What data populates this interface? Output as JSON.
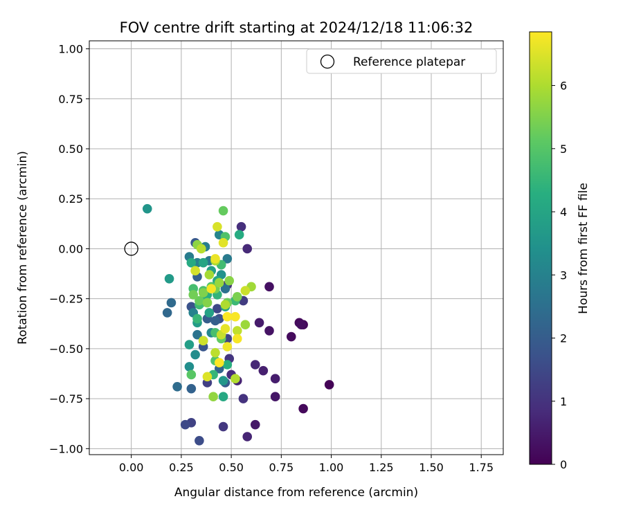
{
  "chart_data": {
    "type": "scatter",
    "title": "FOV centre drift starting at 2024/12/18 11:06:32",
    "xlabel": "Angular distance from reference (arcmin)",
    "ylabel": "Rotation from reference (arcmin)",
    "xlim": [
      -0.21,
      1.86
    ],
    "ylim": [
      -1.03,
      1.04
    ],
    "xticks": [
      0.0,
      0.25,
      0.5,
      0.75,
      1.0,
      1.25,
      1.5,
      1.75
    ],
    "xtick_labels": [
      "0.00",
      "0.25",
      "0.50",
      "0.75",
      "1.00",
      "1.25",
      "1.50",
      "1.75"
    ],
    "yticks": [
      -1.0,
      -0.75,
      -0.5,
      -0.25,
      0.0,
      0.25,
      0.5,
      0.75,
      1.0
    ],
    "ytick_labels": [
      "−1.00",
      "−0.75",
      "−0.50",
      "−0.25",
      "0.00",
      "0.25",
      "0.50",
      "0.75",
      "1.00"
    ],
    "grid": true,
    "legend": {
      "placement": "top-right",
      "entries": [
        "Reference platepar"
      ]
    },
    "reference_point": {
      "x": 0.0,
      "y": 0.0
    },
    "colorbar": {
      "label": "Hours from first FF file",
      "range": [
        0,
        6.85
      ],
      "ticks": [
        0,
        1,
        2,
        3,
        4,
        5,
        6
      ],
      "tick_labels": [
        "0",
        "1",
        "2",
        "3",
        "4",
        "5",
        "6"
      ],
      "colormap": "viridis"
    },
    "points": [
      {
        "x": 0.99,
        "y": -0.68,
        "h": 0.05
      },
      {
        "x": 0.86,
        "y": -0.38,
        "h": 0.1
      },
      {
        "x": 0.84,
        "y": -0.37,
        "h": 0.15
      },
      {
        "x": 0.86,
        "y": -0.8,
        "h": 0.15
      },
      {
        "x": 0.8,
        "y": -0.44,
        "h": 0.2
      },
      {
        "x": 0.85,
        "y": -0.38,
        "h": 0.25
      },
      {
        "x": 0.69,
        "y": -0.19,
        "h": 0.3
      },
      {
        "x": 0.69,
        "y": -0.41,
        "h": 0.35
      },
      {
        "x": 0.72,
        "y": -0.74,
        "h": 0.4
      },
      {
        "x": 0.62,
        "y": -0.88,
        "h": 0.45
      },
      {
        "x": 0.64,
        "y": -0.37,
        "h": 0.5
      },
      {
        "x": 0.72,
        "y": -0.65,
        "h": 0.55
      },
      {
        "x": 0.66,
        "y": -0.61,
        "h": 0.6
      },
      {
        "x": 0.53,
        "y": -0.66,
        "h": 0.65
      },
      {
        "x": 0.58,
        "y": -0.94,
        "h": 0.7
      },
      {
        "x": 0.62,
        "y": -0.58,
        "h": 0.75
      },
      {
        "x": 0.58,
        "y": -0.0,
        "h": 0.8
      },
      {
        "x": 0.5,
        "y": -0.63,
        "h": 0.85
      },
      {
        "x": 0.55,
        "y": 0.11,
        "h": 0.9
      },
      {
        "x": 0.48,
        "y": -0.18,
        "h": 0.95
      },
      {
        "x": 0.56,
        "y": -0.75,
        "h": 1.0
      },
      {
        "x": 0.49,
        "y": -0.55,
        "h": 1.05
      },
      {
        "x": 0.46,
        "y": -0.89,
        "h": 1.1
      },
      {
        "x": 0.56,
        "y": -0.26,
        "h": 1.2
      },
      {
        "x": 0.38,
        "y": -0.67,
        "h": 1.3
      },
      {
        "x": 0.3,
        "y": -0.87,
        "h": 1.35
      },
      {
        "x": 0.48,
        "y": -0.45,
        "h": 1.4
      },
      {
        "x": 0.43,
        "y": -0.3,
        "h": 1.45
      },
      {
        "x": 0.27,
        "y": -0.88,
        "h": 1.5
      },
      {
        "x": 0.34,
        "y": -0.96,
        "h": 1.6
      },
      {
        "x": 0.44,
        "y": -0.35,
        "h": 1.7
      },
      {
        "x": 0.3,
        "y": -0.29,
        "h": 1.75
      },
      {
        "x": 0.36,
        "y": -0.49,
        "h": 1.8
      },
      {
        "x": 0.32,
        "y": 0.03,
        "h": 1.9
      },
      {
        "x": 0.47,
        "y": -0.67,
        "h": 1.95
      },
      {
        "x": 0.38,
        "y": -0.35,
        "h": 2.0
      },
      {
        "x": 0.42,
        "y": -0.36,
        "h": 2.05
      },
      {
        "x": 0.33,
        "y": -0.14,
        "h": 2.1
      },
      {
        "x": 0.3,
        "y": -0.7,
        "h": 2.15
      },
      {
        "x": 0.44,
        "y": -0.6,
        "h": 2.2
      },
      {
        "x": 0.18,
        "y": -0.32,
        "h": 2.3
      },
      {
        "x": 0.2,
        "y": -0.27,
        "h": 2.35
      },
      {
        "x": 0.23,
        "y": -0.69,
        "h": 2.4
      },
      {
        "x": 0.36,
        "y": -0.46,
        "h": 2.5
      },
      {
        "x": 0.47,
        "y": -0.2,
        "h": 2.55
      },
      {
        "x": 0.33,
        "y": -0.43,
        "h": 2.6
      },
      {
        "x": 0.39,
        "y": -0.06,
        "h": 2.7
      },
      {
        "x": 0.48,
        "y": -0.05,
        "h": 2.8
      },
      {
        "x": 0.29,
        "y": -0.04,
        "h": 2.85
      },
      {
        "x": 0.37,
        "y": 0.01,
        "h": 2.9
      },
      {
        "x": 0.33,
        "y": -0.07,
        "h": 2.95
      },
      {
        "x": 0.31,
        "y": -0.32,
        "h": 3.0
      },
      {
        "x": 0.45,
        "y": -0.08,
        "h": 3.05
      },
      {
        "x": 0.44,
        "y": 0.07,
        "h": 3.1
      },
      {
        "x": 0.4,
        "y": -0.42,
        "h": 3.15
      },
      {
        "x": 0.35,
        "y": -0.27,
        "h": 3.2
      },
      {
        "x": 0.32,
        "y": -0.53,
        "h": 3.3
      },
      {
        "x": 0.29,
        "y": -0.59,
        "h": 3.35
      },
      {
        "x": 0.37,
        "y": -0.22,
        "h": 3.4
      },
      {
        "x": 0.45,
        "y": -0.13,
        "h": 3.45
      },
      {
        "x": 0.08,
        "y": 0.2,
        "h": 3.55
      },
      {
        "x": 0.46,
        "y": -0.66,
        "h": 3.6
      },
      {
        "x": 0.19,
        "y": -0.15,
        "h": 3.7
      },
      {
        "x": 0.33,
        "y": -0.37,
        "h": 3.75
      },
      {
        "x": 0.29,
        "y": -0.48,
        "h": 3.8
      },
      {
        "x": 0.4,
        "y": -0.11,
        "h": 3.85
      },
      {
        "x": 0.39,
        "y": -0.32,
        "h": 3.9
      },
      {
        "x": 0.47,
        "y": -0.29,
        "h": 3.95
      },
      {
        "x": 0.36,
        "y": -0.07,
        "h": 4.0
      },
      {
        "x": 0.43,
        "y": -0.16,
        "h": 4.05
      },
      {
        "x": 0.46,
        "y": -0.74,
        "h": 4.1
      },
      {
        "x": 0.3,
        "y": -0.07,
        "h": 4.15
      },
      {
        "x": 0.54,
        "y": 0.07,
        "h": 4.2
      },
      {
        "x": 0.38,
        "y": -0.23,
        "h": 4.25
      },
      {
        "x": 0.48,
        "y": -0.58,
        "h": 4.3
      },
      {
        "x": 0.35,
        "y": -0.26,
        "h": 4.4
      },
      {
        "x": 0.43,
        "y": -0.23,
        "h": 4.45
      },
      {
        "x": 0.41,
        "y": -0.63,
        "h": 4.5
      },
      {
        "x": 0.33,
        "y": -0.35,
        "h": 4.55
      },
      {
        "x": 0.52,
        "y": -0.26,
        "h": 4.6
      },
      {
        "x": 0.34,
        "y": -0.28,
        "h": 4.65
      },
      {
        "x": 0.45,
        "y": -0.08,
        "h": 4.7
      },
      {
        "x": 0.31,
        "y": -0.2,
        "h": 4.75
      },
      {
        "x": 0.42,
        "y": -0.42,
        "h": 4.8
      },
      {
        "x": 0.36,
        "y": -0.21,
        "h": 4.85
      },
      {
        "x": 0.47,
        "y": 0.06,
        "h": 4.9
      },
      {
        "x": 0.42,
        "y": -0.56,
        "h": 4.95
      },
      {
        "x": 0.4,
        "y": -0.19,
        "h": 5.0
      },
      {
        "x": 0.3,
        "y": -0.63,
        "h": 5.05
      },
      {
        "x": 0.38,
        "y": -0.27,
        "h": 5.1
      },
      {
        "x": 0.45,
        "y": -0.45,
        "h": 5.15
      },
      {
        "x": 0.46,
        "y": 0.19,
        "h": 5.2
      },
      {
        "x": 0.34,
        "y": -0.26,
        "h": 5.25
      },
      {
        "x": 0.48,
        "y": -0.27,
        "h": 5.3
      },
      {
        "x": 0.31,
        "y": -0.23,
        "h": 5.35
      },
      {
        "x": 0.42,
        "y": -0.2,
        "h": 5.4
      },
      {
        "x": 0.53,
        "y": -0.24,
        "h": 5.45
      },
      {
        "x": 0.36,
        "y": -0.22,
        "h": 5.5
      },
      {
        "x": 0.38,
        "y": -0.27,
        "h": 5.55
      },
      {
        "x": 0.49,
        "y": -0.16,
        "h": 5.6
      },
      {
        "x": 0.33,
        "y": 0.02,
        "h": 5.65
      },
      {
        "x": 0.41,
        "y": -0.74,
        "h": 5.7
      },
      {
        "x": 0.44,
        "y": -0.17,
        "h": 5.75
      },
      {
        "x": 0.57,
        "y": -0.38,
        "h": 5.8
      },
      {
        "x": 0.6,
        "y": -0.19,
        "h": 5.85
      },
      {
        "x": 0.39,
        "y": -0.13,
        "h": 5.9
      },
      {
        "x": 0.42,
        "y": -0.06,
        "h": 5.95
      },
      {
        "x": 0.47,
        "y": -0.28,
        "h": 6.0
      },
      {
        "x": 0.52,
        "y": -0.65,
        "h": 6.05
      },
      {
        "x": 0.35,
        "y": -0.0,
        "h": 6.1
      },
      {
        "x": 0.42,
        "y": -0.52,
        "h": 6.15
      },
      {
        "x": 0.53,
        "y": -0.41,
        "h": 6.2
      },
      {
        "x": 0.45,
        "y": -0.43,
        "h": 6.25
      },
      {
        "x": 0.57,
        "y": -0.21,
        "h": 6.3
      },
      {
        "x": 0.36,
        "y": -0.46,
        "h": 6.35
      },
      {
        "x": 0.32,
        "y": -0.11,
        "h": 6.4
      },
      {
        "x": 0.43,
        "y": 0.11,
        "h": 6.45
      },
      {
        "x": 0.38,
        "y": -0.64,
        "h": 6.5
      },
      {
        "x": 0.46,
        "y": 0.03,
        "h": 6.55
      },
      {
        "x": 0.47,
        "y": -0.4,
        "h": 6.6
      },
      {
        "x": 0.42,
        "y": -0.05,
        "h": 6.65
      },
      {
        "x": 0.48,
        "y": -0.49,
        "h": 6.7
      },
      {
        "x": 0.4,
        "y": -0.2,
        "h": 6.75
      },
      {
        "x": 0.53,
        "y": -0.45,
        "h": 6.78
      },
      {
        "x": 0.52,
        "y": -0.34,
        "h": 6.8
      },
      {
        "x": 0.48,
        "y": -0.34,
        "h": 6.82
      },
      {
        "x": 0.44,
        "y": -0.57,
        "h": 6.84
      }
    ]
  }
}
